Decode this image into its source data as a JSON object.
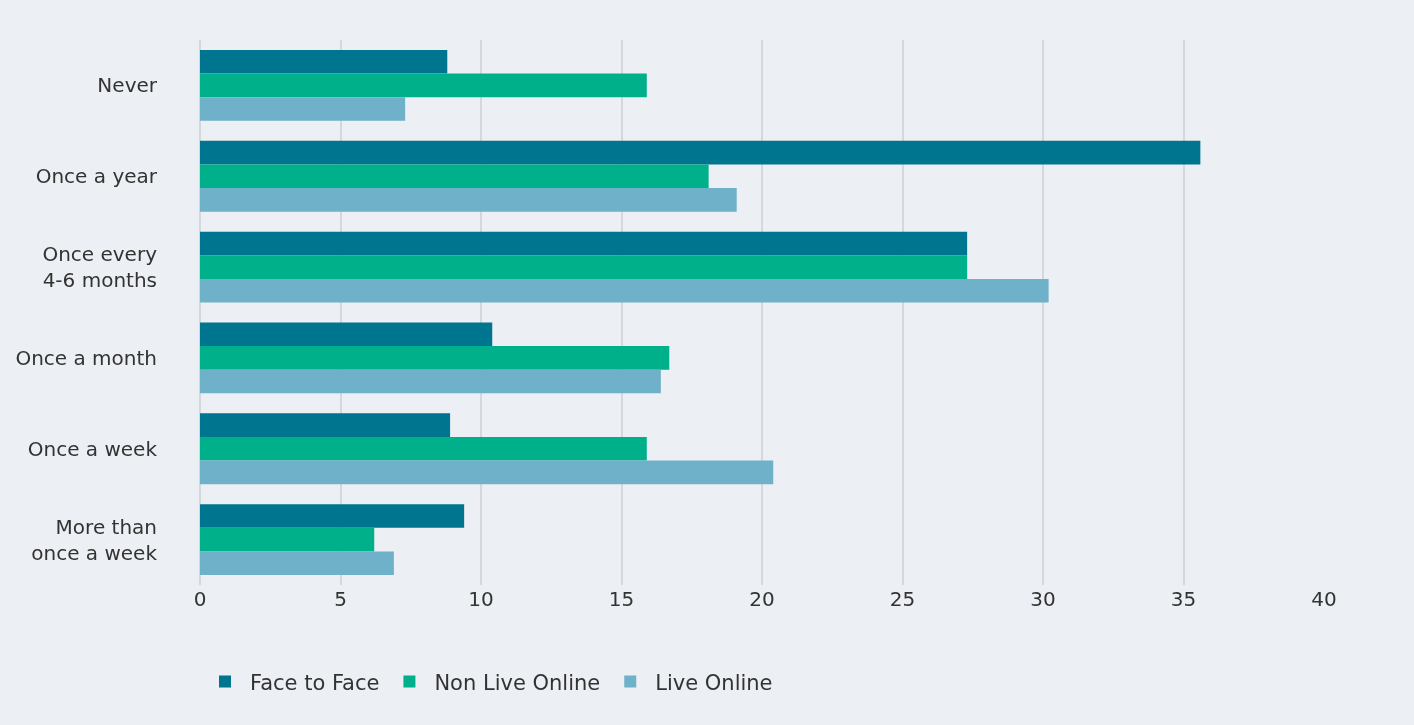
{
  "chart_data": {
    "type": "bar",
    "orientation": "horizontal",
    "categories": [
      "Never",
      "Once a year",
      "Once every 4-6 months",
      "Once a month",
      "Once a week",
      "More than once a week"
    ],
    "series": [
      {
        "name": "Face to Face",
        "color": "#00758f",
        "values": [
          8.8,
          35.6,
          27.3,
          10.4,
          8.9,
          9.4
        ]
      },
      {
        "name": "Non Live Online",
        "color": "#00b08b",
        "values": [
          15.9,
          18.1,
          27.3,
          16.7,
          15.9,
          6.2
        ]
      },
      {
        "name": "Live Online",
        "color": "#6fb1c8",
        "values": [
          7.3,
          19.1,
          30.2,
          16.4,
          20.4,
          6.9
        ]
      }
    ],
    "xlim": [
      0,
      40
    ],
    "xticks": [
      0,
      5,
      10,
      15,
      20,
      25,
      30,
      35,
      40
    ],
    "grid": "x",
    "legend": "bottom"
  }
}
